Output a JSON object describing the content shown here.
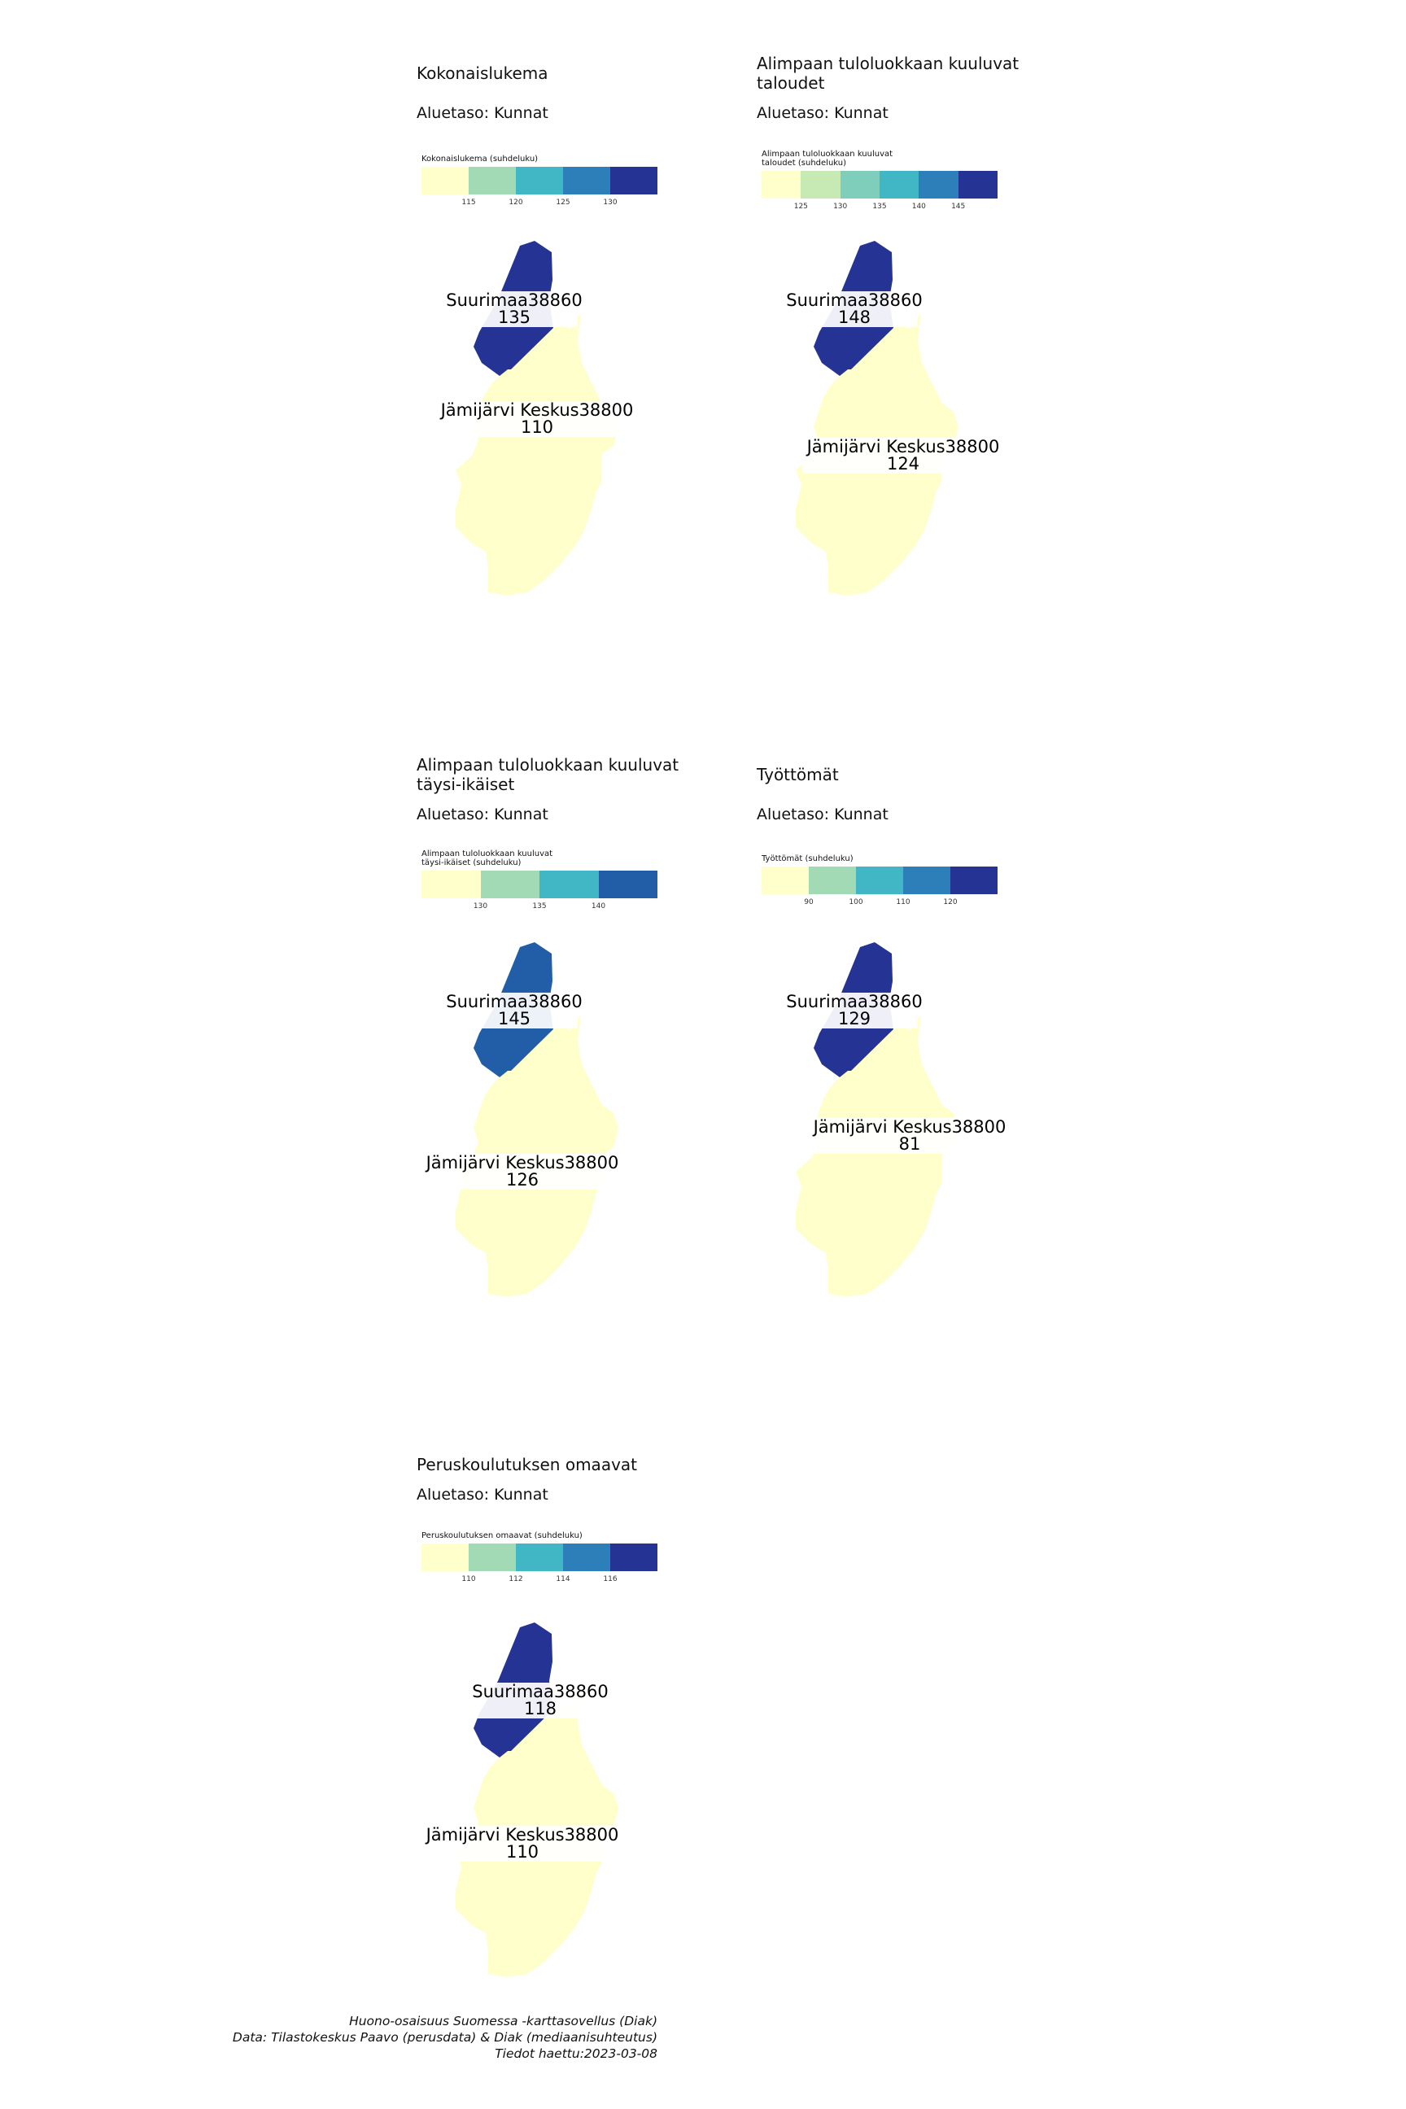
{
  "maps": [
    {
      "title": "Kokonaislukema",
      "subtitle": "Aluetaso: Kunnat",
      "legend_title": "Kokonaislukema (suhdeluku)",
      "colors": [
        "#ffffcc",
        "#a1dab4",
        "#41b6c4",
        "#2c7fb8",
        "#253494"
      ],
      "ticks": [
        "115",
        "120",
        "125",
        "130"
      ],
      "regions": [
        {
          "name": "Suurimaa38860",
          "value": "135",
          "color": "#253494"
        },
        {
          "name": "Jämijärvi Keskus38800",
          "value": "110",
          "color": "#ffffcc"
        }
      ]
    },
    {
      "title": "Alimpaan tuloluokkaan kuuluvat taloudet",
      "subtitle": "Aluetaso: Kunnat",
      "legend_title": "Alimpaan tuloluokkaan kuuluvat\ntaloudet (suhdeluku)",
      "colors": [
        "#ffffcc",
        "#c7e9b4",
        "#7fcdbb",
        "#41b6c4",
        "#2c7fb8",
        "#253494"
      ],
      "ticks": [
        "125",
        "130",
        "135",
        "140",
        "145"
      ],
      "regions": [
        {
          "name": "Suurimaa38860",
          "value": "148",
          "color": "#253494"
        },
        {
          "name": "Jämijärvi Keskus38800",
          "value": "124",
          "color": "#ffffcc"
        }
      ]
    },
    {
      "title": "Alimpaan tuloluokkaan kuuluvat täysi-ikäiset",
      "subtitle": "Aluetaso: Kunnat",
      "legend_title": "Alimpaan tuloluokkaan kuuluvat\ntäysi-ikäiset (suhdeluku)",
      "colors": [
        "#ffffcc",
        "#a1dab4",
        "#41b6c4",
        "#225ea8"
      ],
      "ticks": [
        "130",
        "135",
        "140"
      ],
      "regions": [
        {
          "name": "Suurimaa38860",
          "value": "145",
          "color": "#225ea8"
        },
        {
          "name": "Jämijärvi Keskus38800",
          "value": "126",
          "color": "#ffffcc"
        }
      ]
    },
    {
      "title": "Työttömät",
      "subtitle": "Aluetaso: Kunnat",
      "legend_title": "Työttömät (suhdeluku)",
      "colors": [
        "#ffffcc",
        "#a1dab4",
        "#41b6c4",
        "#2c7fb8",
        "#253494"
      ],
      "ticks": [
        "90",
        "100",
        "110",
        "120"
      ],
      "regions": [
        {
          "name": "Suurimaa38860",
          "value": "129",
          "color": "#253494"
        },
        {
          "name": "Jämijärvi Keskus38800",
          "value": "81",
          "color": "#ffffcc"
        }
      ]
    },
    {
      "title": "Peruskoulutuksen omaavat",
      "subtitle": "Aluetaso: Kunnat",
      "legend_title": "Peruskoulutuksen omaavat (suhdeluku)",
      "colors": [
        "#ffffcc",
        "#a1dab4",
        "#41b6c4",
        "#2c7fb8",
        "#253494"
      ],
      "ticks": [
        "110",
        "112",
        "114",
        "116"
      ],
      "regions": [
        {
          "name": "Suurimaa38860",
          "value": "118",
          "color": "#253494"
        },
        {
          "name": "Jämijärvi Keskus38800",
          "value": "110",
          "color": "#ffffcc"
        }
      ]
    }
  ],
  "caption": {
    "line1": "Huono-osaisuus Suomessa -karttasovellus (Diak)",
    "line2": "Data: Tilastokeskus Paavo (perusdata) & Diak (mediaanisuhteutus)",
    "line3": "Tiedot haettu:2023-03-08"
  }
}
